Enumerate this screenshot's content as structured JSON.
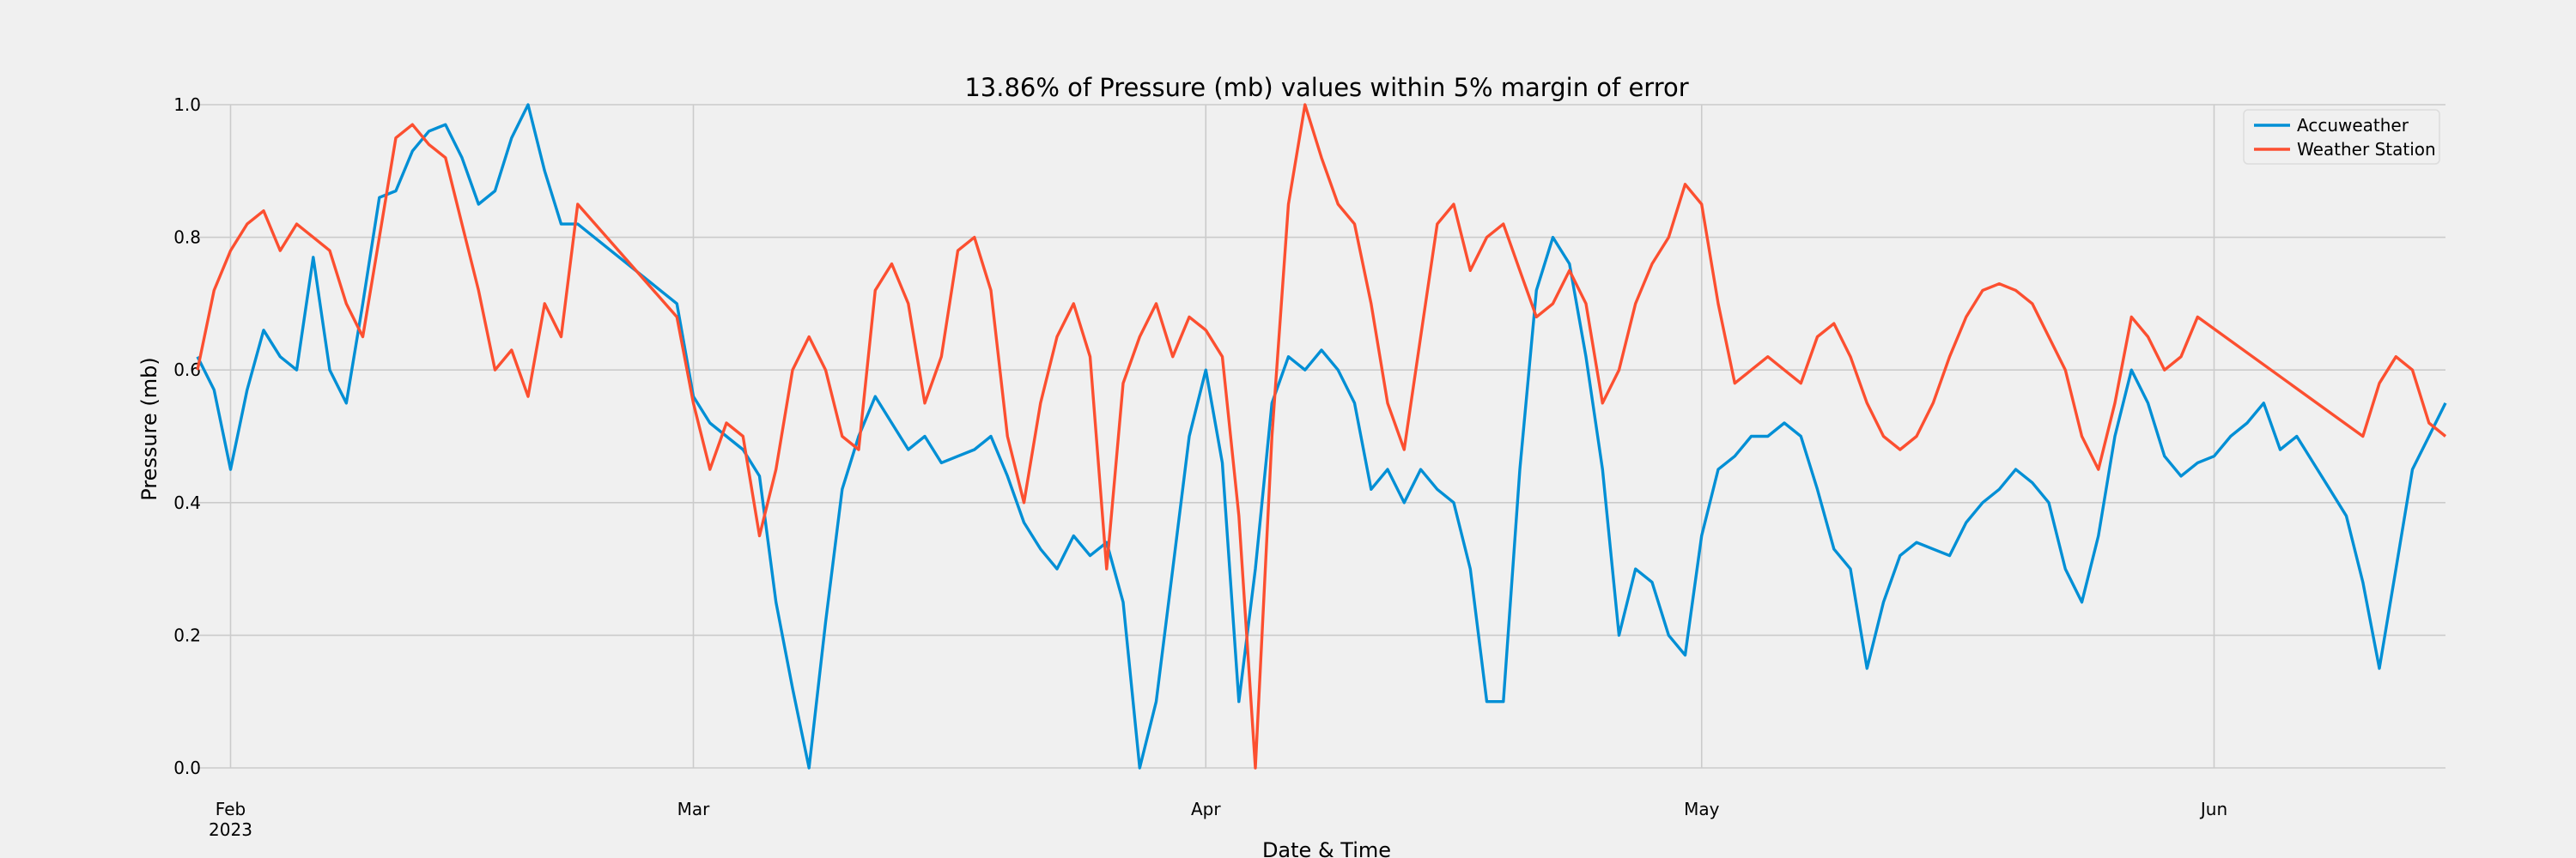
{
  "chart_data": {
    "type": "line",
    "title": "13.86% of Pressure (mb) values within 5% margin of error",
    "xlabel": "Date & Time",
    "ylabel": "Pressure (mb)",
    "ylim": [
      0,
      1.0
    ],
    "grid": true,
    "legend_position": "top-right",
    "y_ticks": [
      "0.0",
      "0.2",
      "0.4",
      "0.6",
      "0.8",
      "1.0"
    ],
    "x_ticks": [
      {
        "date": "2023-02-01",
        "label": "Feb",
        "sublabel": "2023"
      },
      {
        "date": "2023-03-01",
        "label": "Mar",
        "sublabel": ""
      },
      {
        "date": "2023-04-01",
        "label": "Apr",
        "sublabel": ""
      },
      {
        "date": "2023-05-01",
        "label": "May",
        "sublabel": ""
      },
      {
        "date": "2023-06-01",
        "label": "Jun",
        "sublabel": ""
      }
    ],
    "xlim": [
      "2023-01-30",
      "2023-06-15"
    ],
    "series": [
      {
        "name": "Accuweather",
        "color": "#008fd5",
        "points": [
          [
            "2023-01-30",
            0.62
          ],
          [
            "2023-01-31",
            0.57
          ],
          [
            "2023-02-01",
            0.45
          ],
          [
            "2023-02-02",
            0.57
          ],
          [
            "2023-02-03",
            0.66
          ],
          [
            "2023-02-04",
            0.62
          ],
          [
            "2023-02-05",
            0.6
          ],
          [
            "2023-02-06",
            0.77
          ],
          [
            "2023-02-07",
            0.6
          ],
          [
            "2023-02-08",
            0.55
          ],
          [
            "2023-02-09",
            0.7
          ],
          [
            "2023-02-10",
            0.86
          ],
          [
            "2023-02-11",
            0.87
          ],
          [
            "2023-02-12",
            0.93
          ],
          [
            "2023-02-13",
            0.96
          ],
          [
            "2023-02-14",
            0.97
          ],
          [
            "2023-02-15",
            0.92
          ],
          [
            "2023-02-16",
            0.85
          ],
          [
            "2023-02-17",
            0.87
          ],
          [
            "2023-02-18",
            0.95
          ],
          [
            "2023-02-19",
            1.0
          ],
          [
            "2023-02-20",
            0.9
          ],
          [
            "2023-02-21",
            0.82
          ],
          [
            "2023-02-22",
            0.82
          ],
          [
            "2023-02-28",
            0.7
          ],
          [
            "2023-03-01",
            0.56
          ],
          [
            "2023-03-02",
            0.52
          ],
          [
            "2023-03-03",
            0.5
          ],
          [
            "2023-03-04",
            0.48
          ],
          [
            "2023-03-05",
            0.44
          ],
          [
            "2023-03-06",
            0.25
          ],
          [
            "2023-03-07",
            0.12
          ],
          [
            "2023-03-08",
            0.0
          ],
          [
            "2023-03-09",
            0.22
          ],
          [
            "2023-03-10",
            0.42
          ],
          [
            "2023-03-11",
            0.5
          ],
          [
            "2023-03-12",
            0.56
          ],
          [
            "2023-03-13",
            0.52
          ],
          [
            "2023-03-14",
            0.48
          ],
          [
            "2023-03-15",
            0.5
          ],
          [
            "2023-03-16",
            0.46
          ],
          [
            "2023-03-17",
            0.47
          ],
          [
            "2023-03-18",
            0.48
          ],
          [
            "2023-03-19",
            0.5
          ],
          [
            "2023-03-20",
            0.44
          ],
          [
            "2023-03-21",
            0.37
          ],
          [
            "2023-03-22",
            0.33
          ],
          [
            "2023-03-23",
            0.3
          ],
          [
            "2023-03-24",
            0.35
          ],
          [
            "2023-03-25",
            0.32
          ],
          [
            "2023-03-26",
            0.34
          ],
          [
            "2023-03-27",
            0.25
          ],
          [
            "2023-03-28",
            0.0
          ],
          [
            "2023-03-29",
            0.1
          ],
          [
            "2023-03-30",
            0.3
          ],
          [
            "2023-03-31",
            0.5
          ],
          [
            "2023-04-01",
            0.6
          ],
          [
            "2023-04-02",
            0.46
          ],
          [
            "2023-04-03",
            0.1
          ],
          [
            "2023-04-04",
            0.3
          ],
          [
            "2023-04-05",
            0.55
          ],
          [
            "2023-04-06",
            0.62
          ],
          [
            "2023-04-07",
            0.6
          ],
          [
            "2023-04-08",
            0.63
          ],
          [
            "2023-04-09",
            0.6
          ],
          [
            "2023-04-10",
            0.55
          ],
          [
            "2023-04-11",
            0.42
          ],
          [
            "2023-04-12",
            0.45
          ],
          [
            "2023-04-13",
            0.4
          ],
          [
            "2023-04-14",
            0.45
          ],
          [
            "2023-04-15",
            0.42
          ],
          [
            "2023-04-16",
            0.4
          ],
          [
            "2023-04-17",
            0.3
          ],
          [
            "2023-04-18",
            0.1
          ],
          [
            "2023-04-19",
            0.1
          ],
          [
            "2023-04-20",
            0.45
          ],
          [
            "2023-04-21",
            0.72
          ],
          [
            "2023-04-22",
            0.8
          ],
          [
            "2023-04-23",
            0.76
          ],
          [
            "2023-04-24",
            0.62
          ],
          [
            "2023-04-25",
            0.45
          ],
          [
            "2023-04-26",
            0.2
          ],
          [
            "2023-04-27",
            0.3
          ],
          [
            "2023-04-28",
            0.28
          ],
          [
            "2023-04-29",
            0.2
          ],
          [
            "2023-04-30",
            0.17
          ],
          [
            "2023-05-01",
            0.35
          ],
          [
            "2023-05-02",
            0.45
          ],
          [
            "2023-05-03",
            0.47
          ],
          [
            "2023-05-04",
            0.5
          ],
          [
            "2023-05-05",
            0.5
          ],
          [
            "2023-05-06",
            0.52
          ],
          [
            "2023-05-07",
            0.5
          ],
          [
            "2023-05-08",
            0.42
          ],
          [
            "2023-05-09",
            0.33
          ],
          [
            "2023-05-10",
            0.3
          ],
          [
            "2023-05-11",
            0.15
          ],
          [
            "2023-05-12",
            0.25
          ],
          [
            "2023-05-13",
            0.32
          ],
          [
            "2023-05-14",
            0.34
          ],
          [
            "2023-05-15",
            0.33
          ],
          [
            "2023-05-16",
            0.32
          ],
          [
            "2023-05-17",
            0.37
          ],
          [
            "2023-05-18",
            0.4
          ],
          [
            "2023-05-19",
            0.42
          ],
          [
            "2023-05-20",
            0.45
          ],
          [
            "2023-05-21",
            0.43
          ],
          [
            "2023-05-22",
            0.4
          ],
          [
            "2023-05-23",
            0.3
          ],
          [
            "2023-05-24",
            0.25
          ],
          [
            "2023-05-25",
            0.35
          ],
          [
            "2023-05-26",
            0.5
          ],
          [
            "2023-05-27",
            0.6
          ],
          [
            "2023-05-28",
            0.55
          ],
          [
            "2023-05-29",
            0.47
          ],
          [
            "2023-05-30",
            0.44
          ],
          [
            "2023-05-31",
            0.46
          ],
          [
            "2023-06-01",
            0.47
          ],
          [
            "2023-06-02",
            0.5
          ],
          [
            "2023-06-03",
            0.52
          ],
          [
            "2023-06-04",
            0.55
          ],
          [
            "2023-06-05",
            0.48
          ],
          [
            "2023-06-06",
            0.5
          ],
          [
            "2023-06-07",
            0.46
          ],
          [
            "2023-06-08",
            0.42
          ],
          [
            "2023-06-09",
            0.38
          ],
          [
            "2023-06-10",
            0.28
          ],
          [
            "2023-06-11",
            0.15
          ],
          [
            "2023-06-12",
            0.3
          ],
          [
            "2023-06-13",
            0.45
          ],
          [
            "2023-06-14",
            0.5
          ],
          [
            "2023-06-15",
            0.55
          ]
        ]
      },
      {
        "name": "Weather Station",
        "color": "#fc4f30",
        "points": [
          [
            "2023-01-30",
            0.6
          ],
          [
            "2023-01-31",
            0.72
          ],
          [
            "2023-02-01",
            0.78
          ],
          [
            "2023-02-02",
            0.82
          ],
          [
            "2023-02-03",
            0.84
          ],
          [
            "2023-02-04",
            0.78
          ],
          [
            "2023-02-05",
            0.82
          ],
          [
            "2023-02-06",
            0.8
          ],
          [
            "2023-02-07",
            0.78
          ],
          [
            "2023-02-08",
            0.7
          ],
          [
            "2023-02-09",
            0.65
          ],
          [
            "2023-02-10",
            0.8
          ],
          [
            "2023-02-11",
            0.95
          ],
          [
            "2023-02-12",
            0.97
          ],
          [
            "2023-02-13",
            0.94
          ],
          [
            "2023-02-14",
            0.92
          ],
          [
            "2023-02-15",
            0.82
          ],
          [
            "2023-02-16",
            0.72
          ],
          [
            "2023-02-17",
            0.6
          ],
          [
            "2023-02-18",
            0.63
          ],
          [
            "2023-02-19",
            0.56
          ],
          [
            "2023-02-20",
            0.7
          ],
          [
            "2023-02-21",
            0.65
          ],
          [
            "2023-02-22",
            0.85
          ],
          [
            "2023-02-28",
            0.68
          ],
          [
            "2023-03-01",
            0.55
          ],
          [
            "2023-03-02",
            0.45
          ],
          [
            "2023-03-03",
            0.52
          ],
          [
            "2023-03-04",
            0.5
          ],
          [
            "2023-03-05",
            0.35
          ],
          [
            "2023-03-06",
            0.45
          ],
          [
            "2023-03-07",
            0.6
          ],
          [
            "2023-03-08",
            0.65
          ],
          [
            "2023-03-09",
            0.6
          ],
          [
            "2023-03-10",
            0.5
          ],
          [
            "2023-03-11",
            0.48
          ],
          [
            "2023-03-12",
            0.72
          ],
          [
            "2023-03-13",
            0.76
          ],
          [
            "2023-03-14",
            0.7
          ],
          [
            "2023-03-15",
            0.55
          ],
          [
            "2023-03-16",
            0.62
          ],
          [
            "2023-03-17",
            0.78
          ],
          [
            "2023-03-18",
            0.8
          ],
          [
            "2023-03-19",
            0.72
          ],
          [
            "2023-03-20",
            0.5
          ],
          [
            "2023-03-21",
            0.4
          ],
          [
            "2023-03-22",
            0.55
          ],
          [
            "2023-03-23",
            0.65
          ],
          [
            "2023-03-24",
            0.7
          ],
          [
            "2023-03-25",
            0.62
          ],
          [
            "2023-03-26",
            0.3
          ],
          [
            "2023-03-27",
            0.58
          ],
          [
            "2023-03-28",
            0.65
          ],
          [
            "2023-03-29",
            0.7
          ],
          [
            "2023-03-30",
            0.62
          ],
          [
            "2023-03-31",
            0.68
          ],
          [
            "2023-04-01",
            0.66
          ],
          [
            "2023-04-02",
            0.62
          ],
          [
            "2023-04-03",
            0.38
          ],
          [
            "2023-04-04",
            0.0
          ],
          [
            "2023-04-05",
            0.5
          ],
          [
            "2023-04-06",
            0.85
          ],
          [
            "2023-04-07",
            1.0
          ],
          [
            "2023-04-08",
            0.92
          ],
          [
            "2023-04-09",
            0.85
          ],
          [
            "2023-04-10",
            0.82
          ],
          [
            "2023-04-11",
            0.7
          ],
          [
            "2023-04-12",
            0.55
          ],
          [
            "2023-04-13",
            0.48
          ],
          [
            "2023-04-14",
            0.65
          ],
          [
            "2023-04-15",
            0.82
          ],
          [
            "2023-04-16",
            0.85
          ],
          [
            "2023-04-17",
            0.75
          ],
          [
            "2023-04-18",
            0.8
          ],
          [
            "2023-04-19",
            0.82
          ],
          [
            "2023-04-20",
            0.75
          ],
          [
            "2023-04-21",
            0.68
          ],
          [
            "2023-04-22",
            0.7
          ],
          [
            "2023-04-23",
            0.75
          ],
          [
            "2023-04-24",
            0.7
          ],
          [
            "2023-04-25",
            0.55
          ],
          [
            "2023-04-26",
            0.6
          ],
          [
            "2023-04-27",
            0.7
          ],
          [
            "2023-04-28",
            0.76
          ],
          [
            "2023-04-29",
            0.8
          ],
          [
            "2023-04-30",
            0.88
          ],
          [
            "2023-05-01",
            0.85
          ],
          [
            "2023-05-02",
            0.7
          ],
          [
            "2023-05-03",
            0.58
          ],
          [
            "2023-05-04",
            0.6
          ],
          [
            "2023-05-05",
            0.62
          ],
          [
            "2023-05-06",
            0.6
          ],
          [
            "2023-05-07",
            0.58
          ],
          [
            "2023-05-08",
            0.65
          ],
          [
            "2023-05-09",
            0.67
          ],
          [
            "2023-05-10",
            0.62
          ],
          [
            "2023-05-11",
            0.55
          ],
          [
            "2023-05-12",
            0.5
          ],
          [
            "2023-05-13",
            0.48
          ],
          [
            "2023-05-14",
            0.5
          ],
          [
            "2023-05-15",
            0.55
          ],
          [
            "2023-05-16",
            0.62
          ],
          [
            "2023-05-17",
            0.68
          ],
          [
            "2023-05-18",
            0.72
          ],
          [
            "2023-05-19",
            0.73
          ],
          [
            "2023-05-20",
            0.72
          ],
          [
            "2023-05-21",
            0.7
          ],
          [
            "2023-05-22",
            0.65
          ],
          [
            "2023-05-23",
            0.6
          ],
          [
            "2023-05-24",
            0.5
          ],
          [
            "2023-05-25",
            0.45
          ],
          [
            "2023-05-26",
            0.55
          ],
          [
            "2023-05-27",
            0.68
          ],
          [
            "2023-05-28",
            0.65
          ],
          [
            "2023-05-29",
            0.6
          ],
          [
            "2023-05-30",
            0.62
          ],
          [
            "2023-05-31",
            0.68
          ],
          [
            "2023-06-10",
            0.5
          ],
          [
            "2023-06-11",
            0.58
          ],
          [
            "2023-06-12",
            0.62
          ],
          [
            "2023-06-13",
            0.6
          ],
          [
            "2023-06-14",
            0.52
          ],
          [
            "2023-06-15",
            0.5
          ]
        ]
      }
    ]
  }
}
